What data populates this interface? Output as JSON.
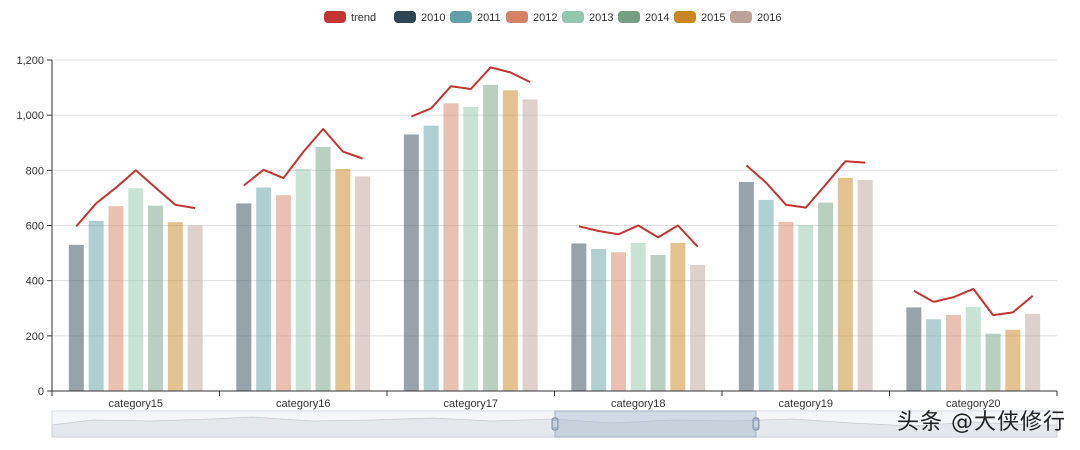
{
  "chart_data": {
    "type": "bar",
    "categories": [
      "category15",
      "category16",
      "category17",
      "category18",
      "category19",
      "category20"
    ],
    "series": [
      {
        "name": "2010",
        "color": "#2f4554",
        "values": [
          530,
          680,
          930,
          535,
          758,
          303
        ]
      },
      {
        "name": "2011",
        "color": "#61a0a8",
        "values": [
          617,
          738,
          962,
          515,
          693,
          260
        ]
      },
      {
        "name": "2012",
        "color": "#d48265",
        "values": [
          670,
          710,
          1043,
          503,
          613,
          276
        ]
      },
      {
        "name": "2013",
        "color": "#91c7ae",
        "values": [
          735,
          805,
          1030,
          537,
          602,
          305
        ]
      },
      {
        "name": "2014",
        "color": "#749f83",
        "values": [
          672,
          885,
          1110,
          493,
          683,
          208
        ]
      },
      {
        "name": "2015",
        "color": "#ca8622",
        "values": [
          612,
          805,
          1090,
          537,
          773,
          222
        ]
      },
      {
        "name": "2016",
        "color": "#bda29a",
        "values": [
          600,
          778,
          1057,
          457,
          765,
          280
        ]
      }
    ],
    "trend": {
      "name": "trend",
      "color": "#c23531",
      "values": [
        [
          597,
          680,
          737,
          800,
          737,
          675,
          663
        ],
        [
          745,
          802,
          772,
          867,
          950,
          868,
          843
        ],
        [
          995,
          1025,
          1105,
          1095,
          1173,
          1155,
          1120
        ],
        [
          597,
          580,
          568,
          600,
          557,
          600,
          523
        ],
        [
          818,
          755,
          675,
          665,
          748,
          833,
          828
        ],
        [
          363,
          323,
          340,
          370,
          275,
          285,
          345
        ]
      ]
    },
    "ylim": [
      0,
      1200
    ],
    "yticks": [
      "0",
      "200",
      "400",
      "600",
      "800",
      "1,000",
      "1,200"
    ],
    "ytick_values": [
      0,
      200,
      400,
      600,
      800,
      1000,
      1200
    ],
    "grid": true,
    "legend_position": "top-center",
    "title": "",
    "xlabel": "",
    "ylabel": ""
  },
  "watermark": "头条 @大侠修行"
}
